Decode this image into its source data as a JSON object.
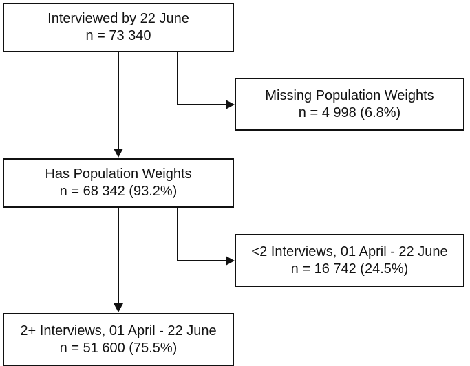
{
  "nodes": {
    "interviewed": {
      "title": "Interviewed by 22 June",
      "count": "n = 73 340"
    },
    "missing_weights": {
      "title": "Missing Population Weights",
      "count": "n = 4 998 (6.8%)"
    },
    "has_weights": {
      "title": "Has Population Weights",
      "count": "n = 68 342 (93.2%)"
    },
    "lt2_interviews": {
      "title": "<2 Interviews, 01 April - 22 June",
      "count": "n = 16 742 (24.5%)"
    },
    "two_plus_interviews": {
      "title": "2+ Interviews, 01 April  - 22 June",
      "count": "n = 51 600 (75.5%)"
    }
  },
  "edges": [
    {
      "from": "interviewed",
      "to": "has_weights"
    },
    {
      "from": "interviewed",
      "to": "missing_weights"
    },
    {
      "from": "has_weights",
      "to": "two_plus_interviews"
    },
    {
      "from": "has_weights",
      "to": "lt2_interviews"
    }
  ]
}
